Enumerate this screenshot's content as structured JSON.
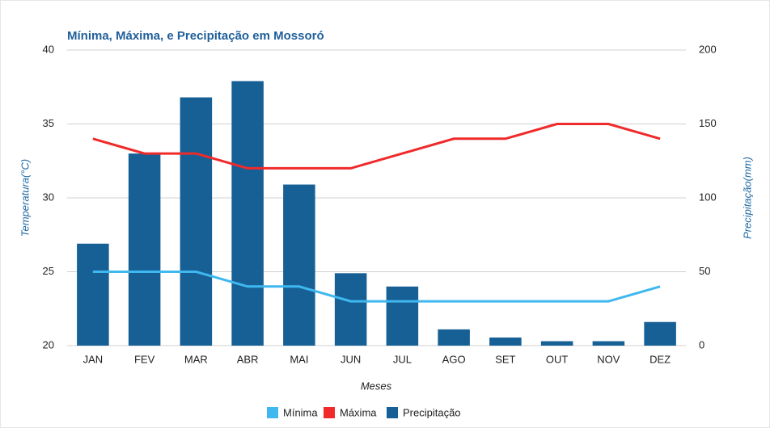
{
  "chart_data": {
    "type": "bar_line",
    "title": "Mínima, Máxima, e Precipitação em Mossoró",
    "x_label": "Meses",
    "y_label": "Temperatura(°C)",
    "y2_label": "Precipitação(mm)",
    "categories": [
      "JAN",
      "FEV",
      "MAR",
      "ABR",
      "MAI",
      "JUN",
      "JUL",
      "AGO",
      "SET",
      "OUT",
      "NOV",
      "DEZ"
    ],
    "series": [
      {
        "name": "Mínima",
        "type": "line",
        "color": "#3fb8f0",
        "values": [
          25,
          25,
          25,
          24,
          24,
          23,
          23,
          23,
          23,
          23,
          23,
          24
        ]
      },
      {
        "name": "Máxima",
        "type": "line",
        "color": "#f02a2a",
        "values": [
          34,
          33,
          33,
          32,
          32,
          32,
          33,
          34,
          34,
          35,
          35,
          34
        ]
      },
      {
        "name": "Precipitação",
        "type": "bar",
        "axis": "y2",
        "color": "#176096",
        "values": [
          69,
          130,
          168,
          179,
          109,
          49,
          40,
          11,
          5.5,
          3,
          3,
          16
        ]
      }
    ],
    "ylim": [
      20,
      40
    ],
    "yticks": [
      20,
      25,
      30,
      35,
      40
    ],
    "y2lim": [
      0,
      200
    ],
    "y2ticks": [
      0,
      50,
      100,
      150,
      200
    ],
    "grid": true,
    "legend": "bottom"
  }
}
